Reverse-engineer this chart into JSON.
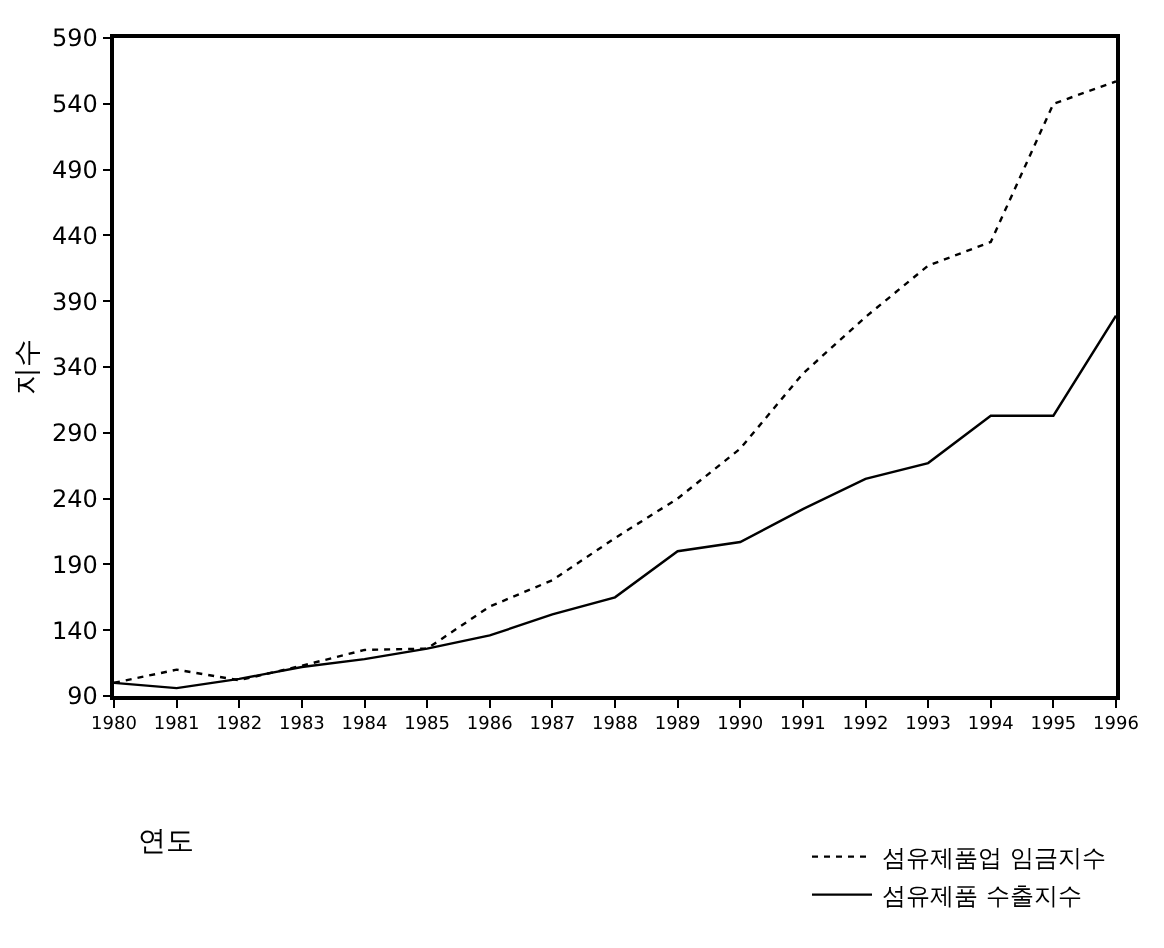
{
  "chart_data": {
    "type": "line",
    "xlabel": "연도",
    "ylabel": "지수",
    "x": [
      1980,
      1981,
      1982,
      1983,
      1984,
      1985,
      1986,
      1987,
      1988,
      1989,
      1990,
      1991,
      1992,
      1993,
      1994,
      1995,
      1996
    ],
    "series": [
      {
        "name": "섬유제품업 임금지수",
        "color": "#000000",
        "line_style": "dotted",
        "values": [
          100,
          110,
          102,
          113,
          125,
          126,
          158,
          178,
          210,
          240,
          278,
          335,
          378,
          417,
          435,
          540,
          557
        ]
      },
      {
        "name": "섬유제품 수출지수",
        "color": "#000000",
        "line_style": "solid",
        "values": [
          100,
          96,
          103,
          112,
          118,
          126,
          136,
          152,
          165,
          200,
          207,
          232,
          255,
          267,
          303,
          303,
          379
        ]
      }
    ],
    "xlim": [
      1980,
      1996
    ],
    "xticks": [
      1980,
      1981,
      1982,
      1983,
      1984,
      1985,
      1986,
      1987,
      1988,
      1989,
      1990,
      1991,
      1992,
      1993,
      1994,
      1995,
      1996
    ],
    "ylim": [
      90,
      590
    ],
    "yticks": [
      90,
      140,
      190,
      240,
      290,
      340,
      390,
      440,
      490,
      540,
      590
    ],
    "legend": "bottom right",
    "marker": "none"
  }
}
